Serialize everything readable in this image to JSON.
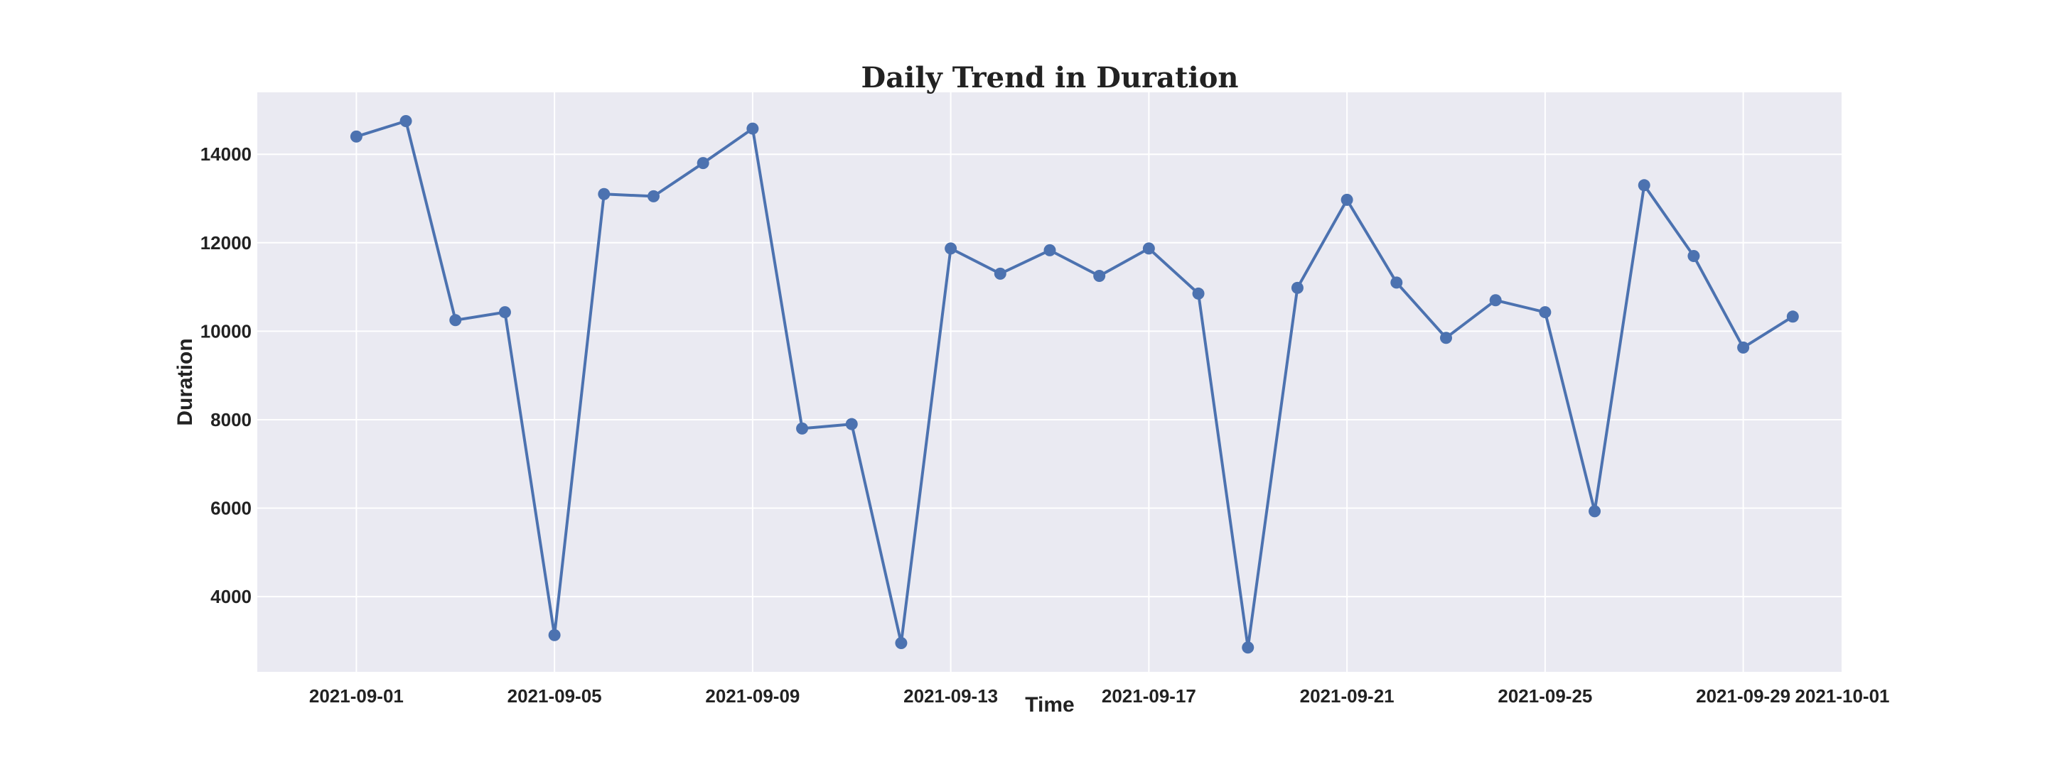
{
  "chart_data": {
    "type": "line",
    "title": "Daily Trend in Duration",
    "xlabel": "Time",
    "ylabel": "Duration",
    "x_start": "2021-09-01",
    "x": [
      "2021-09-01",
      "2021-09-02",
      "2021-09-03",
      "2021-09-04",
      "2021-09-05",
      "2021-09-06",
      "2021-09-07",
      "2021-09-08",
      "2021-09-09",
      "2021-09-10",
      "2021-09-11",
      "2021-09-12",
      "2021-09-13",
      "2021-09-14",
      "2021-09-15",
      "2021-09-16",
      "2021-09-17",
      "2021-09-18",
      "2021-09-19",
      "2021-09-20",
      "2021-09-21",
      "2021-09-22",
      "2021-09-23",
      "2021-09-24",
      "2021-09-25",
      "2021-09-26",
      "2021-09-27",
      "2021-09-28",
      "2021-09-29",
      "2021-09-30"
    ],
    "series": [
      {
        "values": [
          14400,
          14750,
          10250,
          10430,
          3130,
          13100,
          13050,
          13800,
          14580,
          7800,
          7900,
          2950,
          11870,
          11300,
          11830,
          11250,
          11870,
          10850,
          2850,
          10980,
          12970,
          11100,
          9850,
          10700,
          10430,
          5930,
          13300,
          11700,
          9630,
          10330
        ],
        "color": "#4c72b0"
      }
    ],
    "xlim": [
      "2021-08-30",
      "2021-10-01"
    ],
    "ylim": [
      2300,
      15400
    ],
    "x_ticks": [
      "2021-09-01",
      "2021-09-05",
      "2021-09-09",
      "2021-09-13",
      "2021-09-17",
      "2021-09-21",
      "2021-09-25",
      "2021-09-29",
      "2021-10-01"
    ],
    "y_ticks": [
      4000,
      6000,
      8000,
      10000,
      12000,
      14000
    ],
    "grid": true,
    "background_color": "#eaeaf2",
    "grid_color": "#ffffff"
  }
}
